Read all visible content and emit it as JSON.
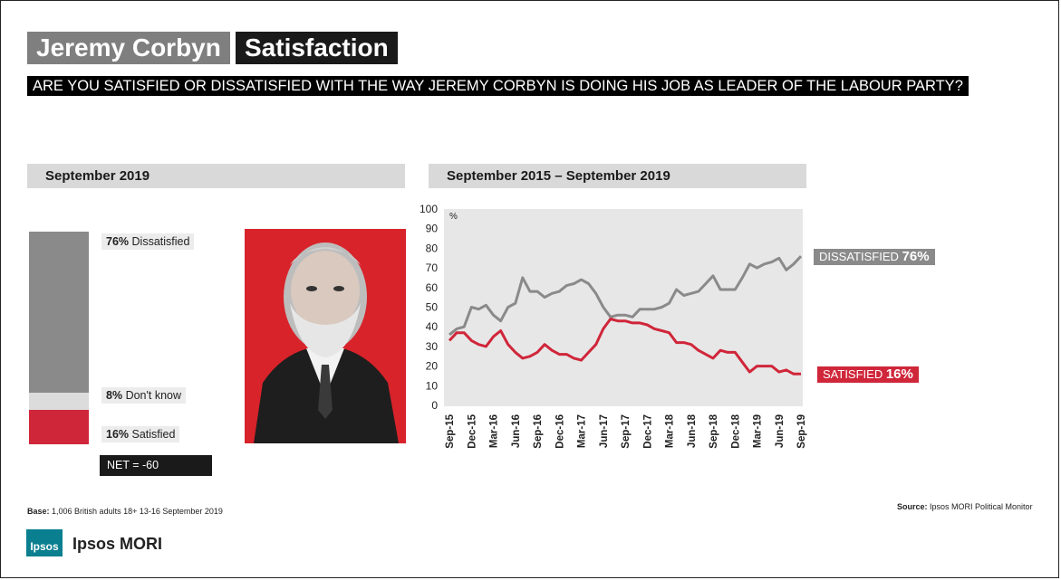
{
  "header": {
    "name": "Jeremy Corbyn",
    "topic": "Satisfaction",
    "question": "ARE YOU SATISFIED OR DISSATISFIED WITH THE WAY JEREMY CORBYN IS DOING HIS JOB AS LEADER OF THE LABOUR PARTY?"
  },
  "left_panel": {
    "heading": "September 2019",
    "dissatisfied_pct": "76%",
    "dissatisfied_label": "Dissatisfied",
    "dontknow_pct": "8%",
    "dontknow_label": "Don't know",
    "satisfied_pct": "16%",
    "satisfied_label": "Satisfied",
    "net": "NET = -60"
  },
  "right_panel": {
    "heading": "September 2015 – September 2019"
  },
  "end_labels": {
    "dissatisfied_text": "DISSATISFIED",
    "dissatisfied_value": "76%",
    "satisfied_text": "SATISFIED",
    "satisfied_value": "16%"
  },
  "footer": {
    "base_label": "Base:",
    "base_text": "1,006 British adults 18+ 13-16 September 2019",
    "source_label": "Source:",
    "source_text": "Ipsos MORI Political Monitor",
    "logo_badge": "Ipsos",
    "logo_text": "Ipsos MORI"
  },
  "colors": {
    "dissatisfied": "#8a8a8a",
    "dontknow": "#dcdcdc",
    "satisfied": "#d0263a",
    "plot_bg": "#e7e7e7"
  },
  "chart_data": [
    {
      "type": "bar",
      "stacked": true,
      "categories": [
        "September 2019"
      ],
      "series": [
        {
          "name": "Dissatisfied",
          "values": [
            76
          ]
        },
        {
          "name": "Don't know",
          "values": [
            8
          ]
        },
        {
          "name": "Satisfied",
          "values": [
            16
          ]
        }
      ]
    },
    {
      "type": "line",
      "ylabel": "%",
      "ylim": [
        0,
        100
      ],
      "yticks": [
        0,
        10,
        20,
        30,
        40,
        50,
        60,
        70,
        80,
        90,
        100
      ],
      "xticklabels": [
        "Sep-15",
        "Dec-15",
        "Mar-16",
        "Jun-16",
        "Sep-16",
        "Dec-16",
        "Mar-17",
        "Jun-17",
        "Sep-17",
        "Dec-17",
        "Mar-18",
        "Jun-18",
        "Sep-18",
        "Dec-18",
        "Mar-19",
        "Jun-19",
        "Sep-19"
      ],
      "x": [
        0,
        1,
        2,
        3,
        4,
        5,
        6,
        7,
        8,
        9,
        10,
        11,
        12,
        13,
        14,
        15,
        16,
        17,
        18,
        19,
        20,
        21,
        22,
        23,
        24,
        25,
        26,
        27,
        28,
        29,
        30,
        31,
        32,
        33,
        34,
        35,
        36,
        37,
        38,
        39,
        40,
        41,
        42,
        43,
        44,
        45,
        46,
        47,
        48
      ],
      "series": [
        {
          "name": "Dissatisfied",
          "values": [
            36,
            39,
            40,
            50,
            49,
            51,
            46,
            43,
            50,
            52,
            65,
            58,
            58,
            55,
            57,
            58,
            61,
            62,
            64,
            62,
            57,
            50,
            45,
            46,
            46,
            45,
            49,
            49,
            49,
            50,
            52,
            59,
            56,
            57,
            58,
            62,
            66,
            59,
            59,
            59,
            65,
            72,
            70,
            72,
            73,
            75,
            69,
            72,
            76
          ]
        },
        {
          "name": "Satisfied",
          "values": [
            33,
            37,
            37,
            33,
            31,
            30,
            35,
            38,
            31,
            27,
            24,
            25,
            27,
            31,
            28,
            26,
            26,
            24,
            23,
            27,
            31,
            39,
            44,
            43,
            43,
            42,
            42,
            41,
            39,
            38,
            37,
            32,
            32,
            31,
            28,
            26,
            24,
            28,
            27,
            27,
            22,
            17,
            20,
            20,
            20,
            17,
            18,
            16,
            16
          ]
        }
      ]
    }
  ]
}
